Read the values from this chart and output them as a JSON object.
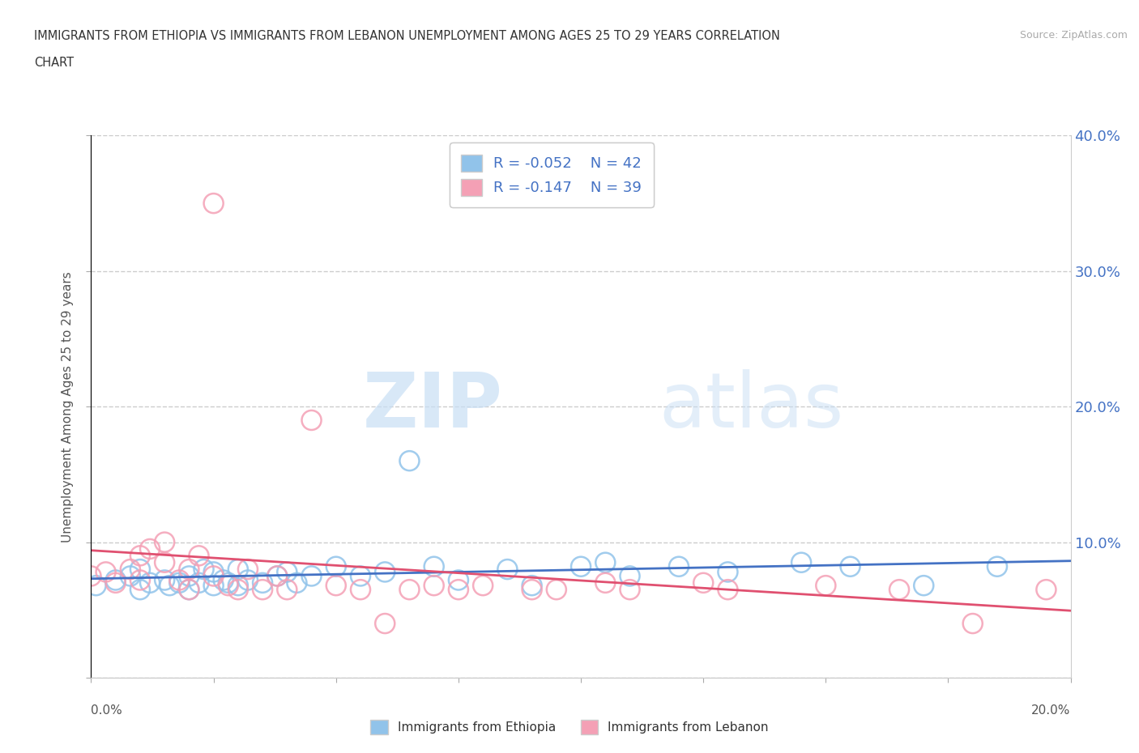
{
  "title_line1": "IMMIGRANTS FROM ETHIOPIA VS IMMIGRANTS FROM LEBANON UNEMPLOYMENT AMONG AGES 25 TO 29 YEARS CORRELATION",
  "title_line2": "CHART",
  "source": "Source: ZipAtlas.com",
  "ylabel": "Unemployment Among Ages 25 to 29 years",
  "xlim": [
    0.0,
    0.2
  ],
  "ylim": [
    0.0,
    0.4
  ],
  "xticks": [
    0.0,
    0.025,
    0.05,
    0.075,
    0.1,
    0.125,
    0.15,
    0.175,
    0.2
  ],
  "yticks": [
    0.0,
    0.1,
    0.2,
    0.3,
    0.4
  ],
  "right_ytick_labels": [
    "",
    "10.0%",
    "20.0%",
    "30.0%",
    "40.0%"
  ],
  "ethiopia_R": -0.052,
  "ethiopia_N": 42,
  "lebanon_R": -0.147,
  "lebanon_N": 39,
  "ethiopia_color": "#91C3EA",
  "lebanon_color": "#F4A0B5",
  "ethiopia_line_color": "#4472C4",
  "lebanon_line_color": "#E05070",
  "watermark_zip": "ZIP",
  "watermark_atlas": "atlas",
  "background_color": "#ffffff",
  "ethiopia_x": [
    0.001,
    0.005,
    0.008,
    0.01,
    0.01,
    0.012,
    0.015,
    0.016,
    0.018,
    0.02,
    0.02,
    0.022,
    0.023,
    0.025,
    0.025,
    0.027,
    0.028,
    0.03,
    0.03,
    0.032,
    0.035,
    0.038,
    0.04,
    0.042,
    0.045,
    0.05,
    0.055,
    0.06,
    0.065,
    0.07,
    0.075,
    0.085,
    0.09,
    0.1,
    0.105,
    0.11,
    0.12,
    0.13,
    0.145,
    0.155,
    0.17,
    0.185
  ],
  "ethiopia_y": [
    0.068,
    0.072,
    0.075,
    0.065,
    0.08,
    0.07,
    0.072,
    0.068,
    0.07,
    0.065,
    0.075,
    0.07,
    0.08,
    0.068,
    0.078,
    0.072,
    0.07,
    0.068,
    0.08,
    0.072,
    0.07,
    0.075,
    0.078,
    0.07,
    0.075,
    0.082,
    0.075,
    0.078,
    0.16,
    0.082,
    0.072,
    0.08,
    0.068,
    0.082,
    0.085,
    0.075,
    0.082,
    0.078,
    0.085,
    0.082,
    0.068,
    0.082
  ],
  "lebanon_x": [
    0.0,
    0.003,
    0.005,
    0.008,
    0.01,
    0.01,
    0.012,
    0.015,
    0.015,
    0.018,
    0.02,
    0.02,
    0.022,
    0.025,
    0.025,
    0.028,
    0.03,
    0.032,
    0.035,
    0.038,
    0.04,
    0.045,
    0.05,
    0.055,
    0.06,
    0.065,
    0.07,
    0.075,
    0.08,
    0.09,
    0.095,
    0.105,
    0.11,
    0.125,
    0.13,
    0.15,
    0.165,
    0.18,
    0.195
  ],
  "lebanon_y": [
    0.075,
    0.078,
    0.07,
    0.08,
    0.072,
    0.09,
    0.095,
    0.085,
    0.1,
    0.072,
    0.065,
    0.08,
    0.09,
    0.35,
    0.075,
    0.068,
    0.065,
    0.08,
    0.065,
    0.075,
    0.065,
    0.19,
    0.068,
    0.065,
    0.04,
    0.065,
    0.068,
    0.065,
    0.068,
    0.065,
    0.065,
    0.07,
    0.065,
    0.07,
    0.065,
    0.068,
    0.065,
    0.04,
    0.065
  ]
}
